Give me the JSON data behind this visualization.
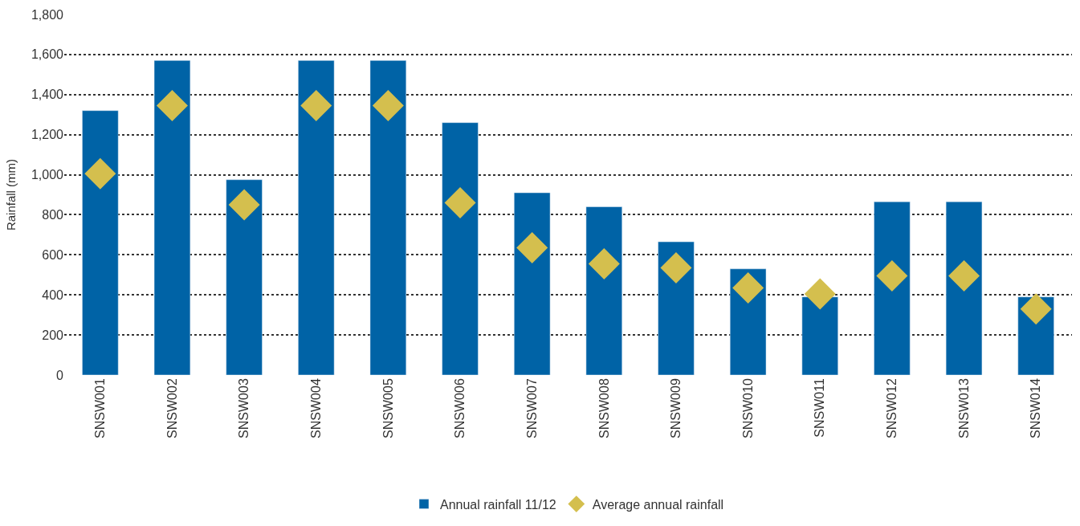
{
  "chart_data": {
    "type": "bar",
    "ylabel": "Rainfall (mm)",
    "categories": [
      "SNSW001",
      "SNSW002",
      "SNSW003",
      "SNSW004",
      "SNSW005",
      "SNSW006",
      "SNSW007",
      "SNSW008",
      "SNSW009",
      "SNSW010",
      "SNSW011",
      "SNSW012",
      "SNSW013",
      "SNSW014"
    ],
    "series": [
      {
        "name": "Annual rainfall 11/12",
        "color": "#0063a6",
        "values": [
          1320,
          1570,
          975,
          1570,
          1570,
          1260,
          910,
          840,
          665,
          530,
          390,
          865,
          865,
          390
        ]
      },
      {
        "name": "Average annual rainfall",
        "type": "scatter",
        "marker": "diamond",
        "color": "#d4bf4e",
        "values": [
          1005,
          1345,
          850,
          1345,
          1345,
          860,
          635,
          555,
          535,
          435,
          405,
          495,
          495,
          330
        ]
      }
    ],
    "ylim": [
      0,
      1800
    ],
    "yticks": [
      {
        "value": 0,
        "label": "0"
      },
      {
        "value": 200,
        "label": "200"
      },
      {
        "value": 400,
        "label": "400"
      },
      {
        "value": 600,
        "label": "600"
      },
      {
        "value": 800,
        "label": "800"
      },
      {
        "value": 1000,
        "label": "1,000"
      },
      {
        "value": 1200,
        "label": "1,200"
      },
      {
        "value": 1400,
        "label": "1,400"
      },
      {
        "value": 1600,
        "label": "1,600"
      },
      {
        "value": 1800,
        "label": "1,800"
      }
    ],
    "grid": "y",
    "legend": "bottom"
  }
}
